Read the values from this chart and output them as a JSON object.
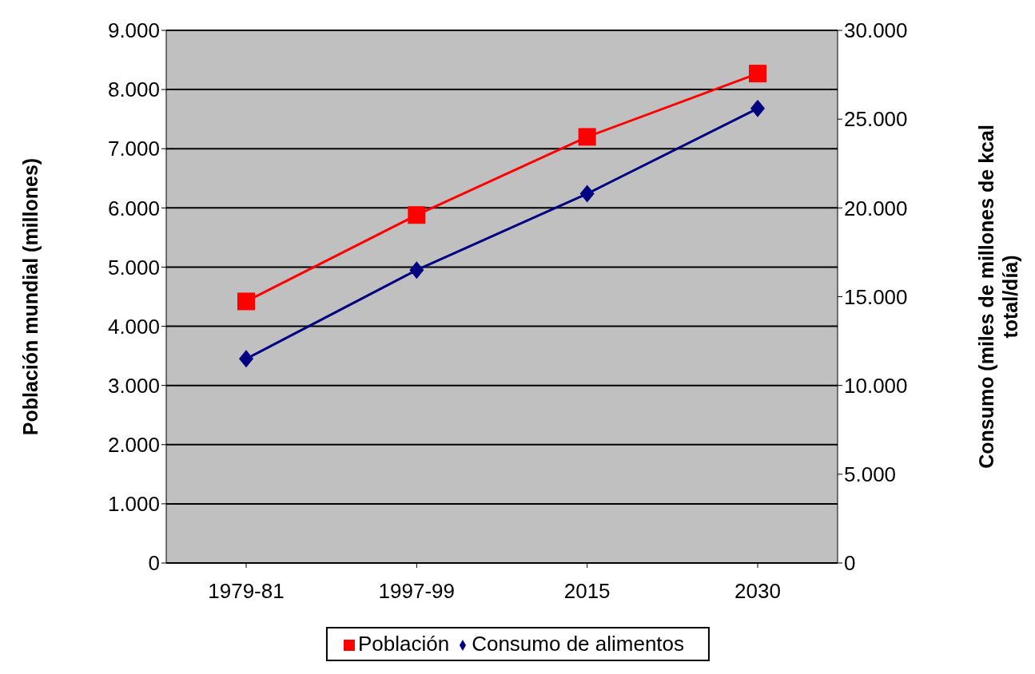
{
  "chart_data": {
    "type": "line",
    "ylabel": "Población mundial (millones)",
    "y2label": "Consumo (miles de millones de kcal\ntotal/día)",
    "categories": [
      "1979-81",
      "1997-99",
      "2015",
      "2030"
    ],
    "series": [
      {
        "name": "Población",
        "color": "#ff0000",
        "marker": "square",
        "values": [
          4420,
          5880,
          7200,
          8270
        ]
      },
      {
        "name": "Consumo de alimentos",
        "color": "#000080",
        "marker": "diamond",
        "axis": "y2",
        "values": [
          11500,
          16500,
          20800,
          25600
        ]
      }
    ],
    "ylim": [
      0,
      9000
    ],
    "yticks": [
      0,
      {
        "value": 1000,
        "label": "1.000"
      },
      {
        "value": 2000,
        "label": "2.000"
      },
      {
        "value": 3000,
        "label": "3.000"
      },
      {
        "value": 4000,
        "label": "4.000"
      },
      {
        "value": 5000,
        "label": "5.000"
      },
      {
        "value": 6000,
        "label": "6.000"
      },
      {
        "value": 7000,
        "label": "7.000"
      },
      {
        "value": 8000,
        "label": "8.000"
      },
      {
        "value": 9000,
        "label": "9.000"
      }
    ],
    "y2lim": [
      0,
      30000
    ],
    "y2ticks": [
      0,
      {
        "value": 5000,
        "label": "5.000"
      },
      {
        "value": 10000,
        "label": "10.000"
      },
      {
        "value": 15000,
        "label": "15.000"
      },
      {
        "value": 20000,
        "label": "20.000"
      },
      {
        "value": 25000,
        "label": "25.000"
      },
      {
        "value": 30000,
        "label": "30.000"
      }
    ],
    "grid": "y",
    "legend": "bottom"
  }
}
